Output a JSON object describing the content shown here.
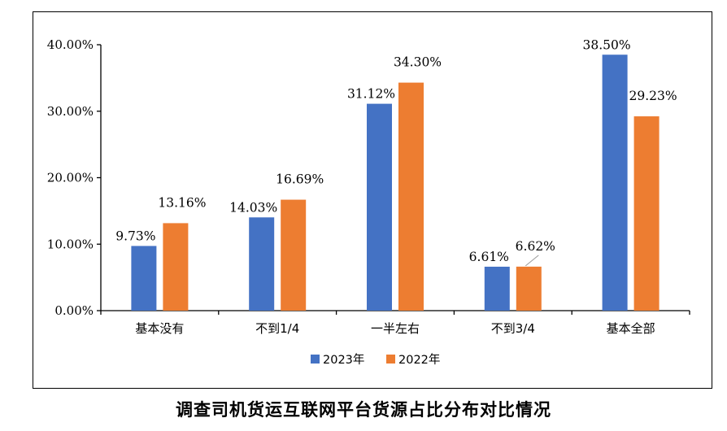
{
  "chart_data": {
    "type": "bar",
    "title": "调查司机货运互联网平台货源占比分布对比情况",
    "categories": [
      "基本没有",
      "不到1/4",
      "一半左右",
      "不到3/4",
      "基本全部"
    ],
    "series": [
      {
        "name": "2023年",
        "color": "#4472C4",
        "values": [
          9.73,
          14.03,
          31.12,
          6.61,
          38.5
        ],
        "labels": [
          "9.73%",
          "14.03%",
          "31.12%",
          "6.61%",
          "38.50%"
        ]
      },
      {
        "name": "2022年",
        "color": "#ED7D31",
        "values": [
          13.16,
          16.69,
          34.3,
          6.62,
          29.23
        ],
        "labels": [
          "13.16%",
          "16.69%",
          "34.30%",
          "6.62%",
          "29.23%"
        ]
      }
    ],
    "ylim": [
      0,
      40
    ],
    "yticks": [
      0,
      10,
      20,
      30,
      40
    ],
    "ytick_labels": [
      "0.00%",
      "10.00%",
      "20.00%",
      "30.00%",
      "40.00%"
    ],
    "xlabel": "",
    "ylabel": "",
    "legend_position": "bottom",
    "grid": false
  }
}
